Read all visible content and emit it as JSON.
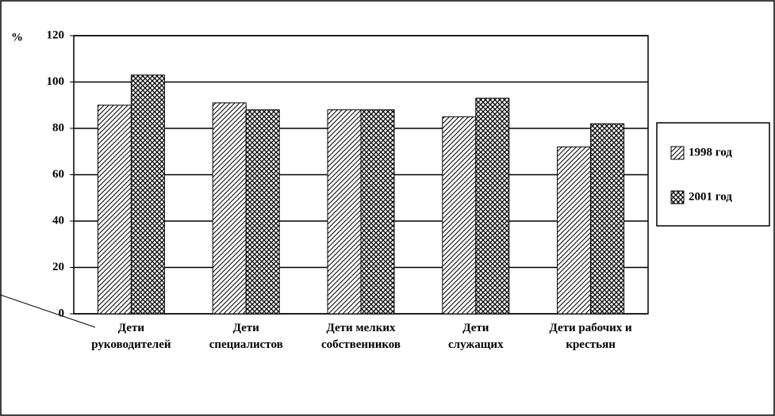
{
  "chart_data": {
    "type": "bar",
    "y_label": "%",
    "categories": [
      "Дети\nруководителей",
      "Дети\nспециалистов",
      "Дети мелких\nсобственников",
      "Дети\nслужащих",
      "Дети рабочих и\nкрестьян"
    ],
    "series": [
      {
        "name": "1998 год",
        "color": "#000000",
        "pattern": "diagonal",
        "values": [
          90,
          91,
          88,
          85,
          72
        ]
      },
      {
        "name": "2001 год",
        "color": "#000000",
        "pattern": "crosshatch",
        "values": [
          103,
          88,
          88,
          93,
          82
        ]
      }
    ],
    "ylim": [
      0,
      120
    ],
    "yticks": [
      0,
      20,
      40,
      60,
      80,
      100,
      120
    ],
    "grid": true,
    "legend": "right"
  }
}
